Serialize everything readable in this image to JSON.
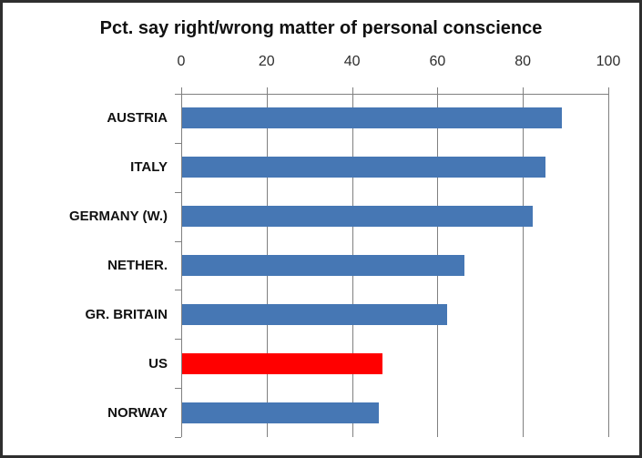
{
  "chart_data": {
    "type": "bar",
    "orientation": "horizontal",
    "title": "Pct. say right/wrong matter of personal conscience",
    "categories": [
      "AUSTRIA",
      "ITALY",
      "GERMANY (W.)",
      "NETHER.",
      "GR. BRITAIN",
      "US",
      "NORWAY"
    ],
    "values": [
      89,
      85,
      82,
      66,
      62,
      47,
      46
    ],
    "xticks": [
      0,
      20,
      40,
      60,
      80,
      100
    ],
    "xlim": [
      0,
      100
    ],
    "axis_position": "top",
    "grid": true,
    "legend": "none",
    "bar_color_default": "#4677b4",
    "highlight_category": "US",
    "highlight_color": "#ff0000",
    "gridline_color": "#808080",
    "axis_color": "#808080",
    "tick_label_color": "#2e2e2e",
    "category_label_color": "#111111"
  },
  "frame": {
    "border_color": "#2e2e2e",
    "background": "#ffffff"
  }
}
